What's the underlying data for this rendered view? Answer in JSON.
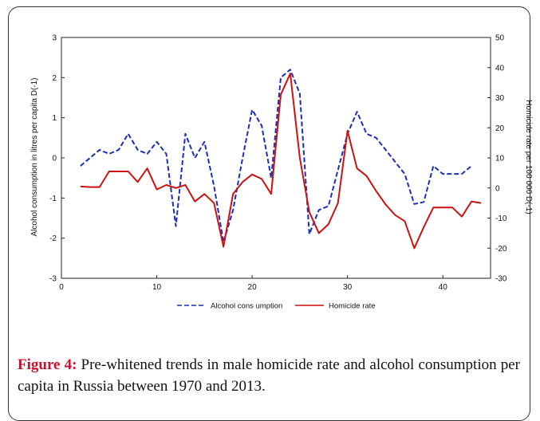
{
  "chart_data": {
    "type": "line",
    "title": "",
    "xlabel": "",
    "ylabel_left": "Alcohol consumption in litres per capita D(-1)",
    "ylabel_right": "Homicide rate per 100 000 D(-1)",
    "xlim": [
      0,
      45
    ],
    "ylim_left": [
      -3,
      3
    ],
    "ylim_right": [
      -30,
      50
    ],
    "x_ticks": [
      0,
      10,
      20,
      30,
      40
    ],
    "y_ticks_left": [
      -3,
      -2,
      -1,
      0,
      1,
      2,
      3
    ],
    "y_ticks_right": [
      -30,
      -20,
      -10,
      0,
      10,
      20,
      30,
      40,
      50
    ],
    "grid": false,
    "legend": "bottom-center",
    "series": [
      {
        "name": "Alcohol cons umption",
        "axis": "left",
        "color": "#1a2eb8",
        "style": "dashed",
        "x": [
          2,
          3,
          4,
          5,
          6,
          7,
          8,
          9,
          10,
          11,
          12,
          13,
          14,
          15,
          16,
          17,
          18,
          19,
          20,
          21,
          22,
          23,
          24,
          25,
          26,
          27,
          28,
          29,
          30,
          31,
          32,
          33,
          34,
          35,
          36,
          37,
          38,
          39,
          40,
          41,
          42,
          43
        ],
        "y": [
          -0.2,
          0.0,
          0.2,
          0.1,
          0.2,
          0.6,
          0.2,
          0.1,
          0.4,
          0.1,
          -1.7,
          0.6,
          0.0,
          0.4,
          -0.7,
          -2.1,
          -1.3,
          0.0,
          1.2,
          0.8,
          -0.5,
          2.0,
          2.2,
          1.6,
          -1.9,
          -1.3,
          -1.2,
          -0.3,
          0.6,
          1.15,
          0.6,
          0.5,
          0.2,
          -0.1,
          -0.4,
          -1.15,
          -1.1,
          -0.2,
          -0.4,
          -0.4,
          -0.4,
          -0.2
        ]
      },
      {
        "name": "Homicide rate",
        "axis": "right",
        "color": "#cc1111",
        "style": "solid",
        "x": [
          2,
          3,
          4,
          5,
          6,
          7,
          8,
          9,
          10,
          11,
          12,
          13,
          14,
          15,
          16,
          17,
          18,
          19,
          20,
          21,
          22,
          23,
          24,
          25,
          26,
          27,
          28,
          29,
          30,
          31,
          32,
          33,
          34,
          35,
          36,
          37,
          38,
          39,
          40,
          41,
          42,
          43,
          44
        ],
        "y": [
          0.5,
          0.3,
          0.3,
          5.5,
          5.5,
          5.5,
          2,
          6.5,
          -0.5,
          1,
          0,
          1,
          -4.5,
          -2,
          -5,
          -19.5,
          -2,
          2,
          4.5,
          3,
          -2,
          31,
          38,
          10,
          -8,
          -15,
          -12,
          -5,
          19,
          6.5,
          4,
          -1,
          -5.5,
          -9,
          -11,
          -20,
          -13,
          -6.5,
          -6.5,
          -6.5,
          -9.5,
          -4.5,
          -5
        ]
      }
    ]
  },
  "caption": {
    "label": "Figure 4:",
    "text": " Pre-whitened trends in male homicide rate and alcohol consumption per capita in Russia between 1970 and 2013."
  }
}
